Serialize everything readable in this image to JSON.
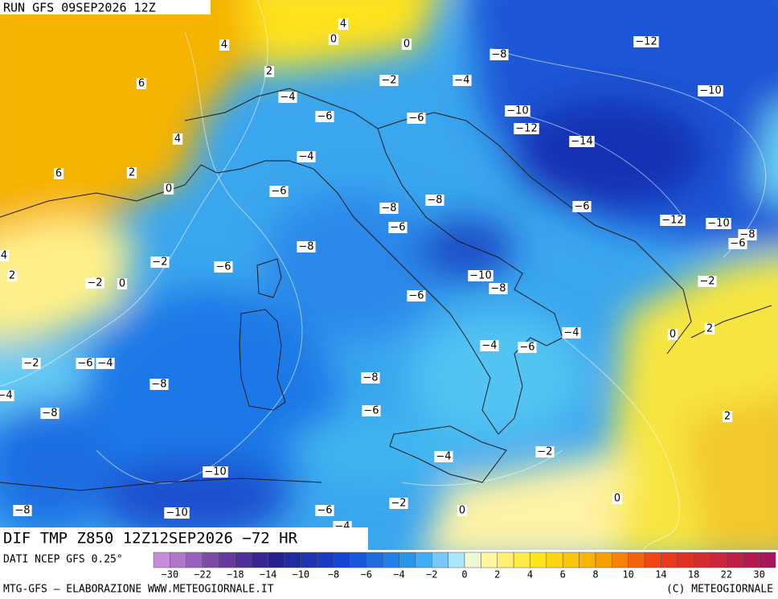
{
  "header": {
    "run": "RUN GFS 09SEP2026 12Z"
  },
  "footer": {
    "title": "DIF TMP Z850 12Z12SEP2026 −72 HR",
    "source": "DATI NCEP GFS 0.25°",
    "credit": "MTG-GFS – ELABORAZIONE WWW.METEOGIORNALE.IT",
    "copyright": "(C) METEOGIORNALE"
  },
  "colorbar": {
    "labels": [
      "−30",
      "−22",
      "−18",
      "−14",
      "−10",
      "−8",
      "−6",
      "−4",
      "−2",
      "0",
      "2",
      "4",
      "6",
      "8",
      "10",
      "14",
      "18",
      "22",
      "30"
    ]
  },
  "contour_labels": [
    "4",
    "4",
    "0",
    "0",
    "−8",
    "−12",
    "6",
    "2",
    "−2",
    "−4",
    "−10",
    "−4",
    "−10",
    "−6",
    "−6",
    "−12",
    "4",
    "−14",
    "−4",
    "6",
    "2",
    "0",
    "−6",
    "−8",
    "−6",
    "−8",
    "−12",
    "−10",
    "−6",
    "−8",
    "−6",
    "4",
    "−8",
    "−2",
    "−6",
    "2",
    "−2",
    "0",
    "−10",
    "−2",
    "−8",
    "−6",
    "−4",
    "0",
    "2",
    "−4",
    "−6",
    "−2",
    "−6",
    "−4",
    "−8",
    "−8",
    "−4",
    "−8",
    "−6",
    "2",
    "−2",
    "−4",
    "−10",
    "−2",
    "0",
    "0",
    "−8",
    "−10",
    "−6",
    "−4"
  ]
}
